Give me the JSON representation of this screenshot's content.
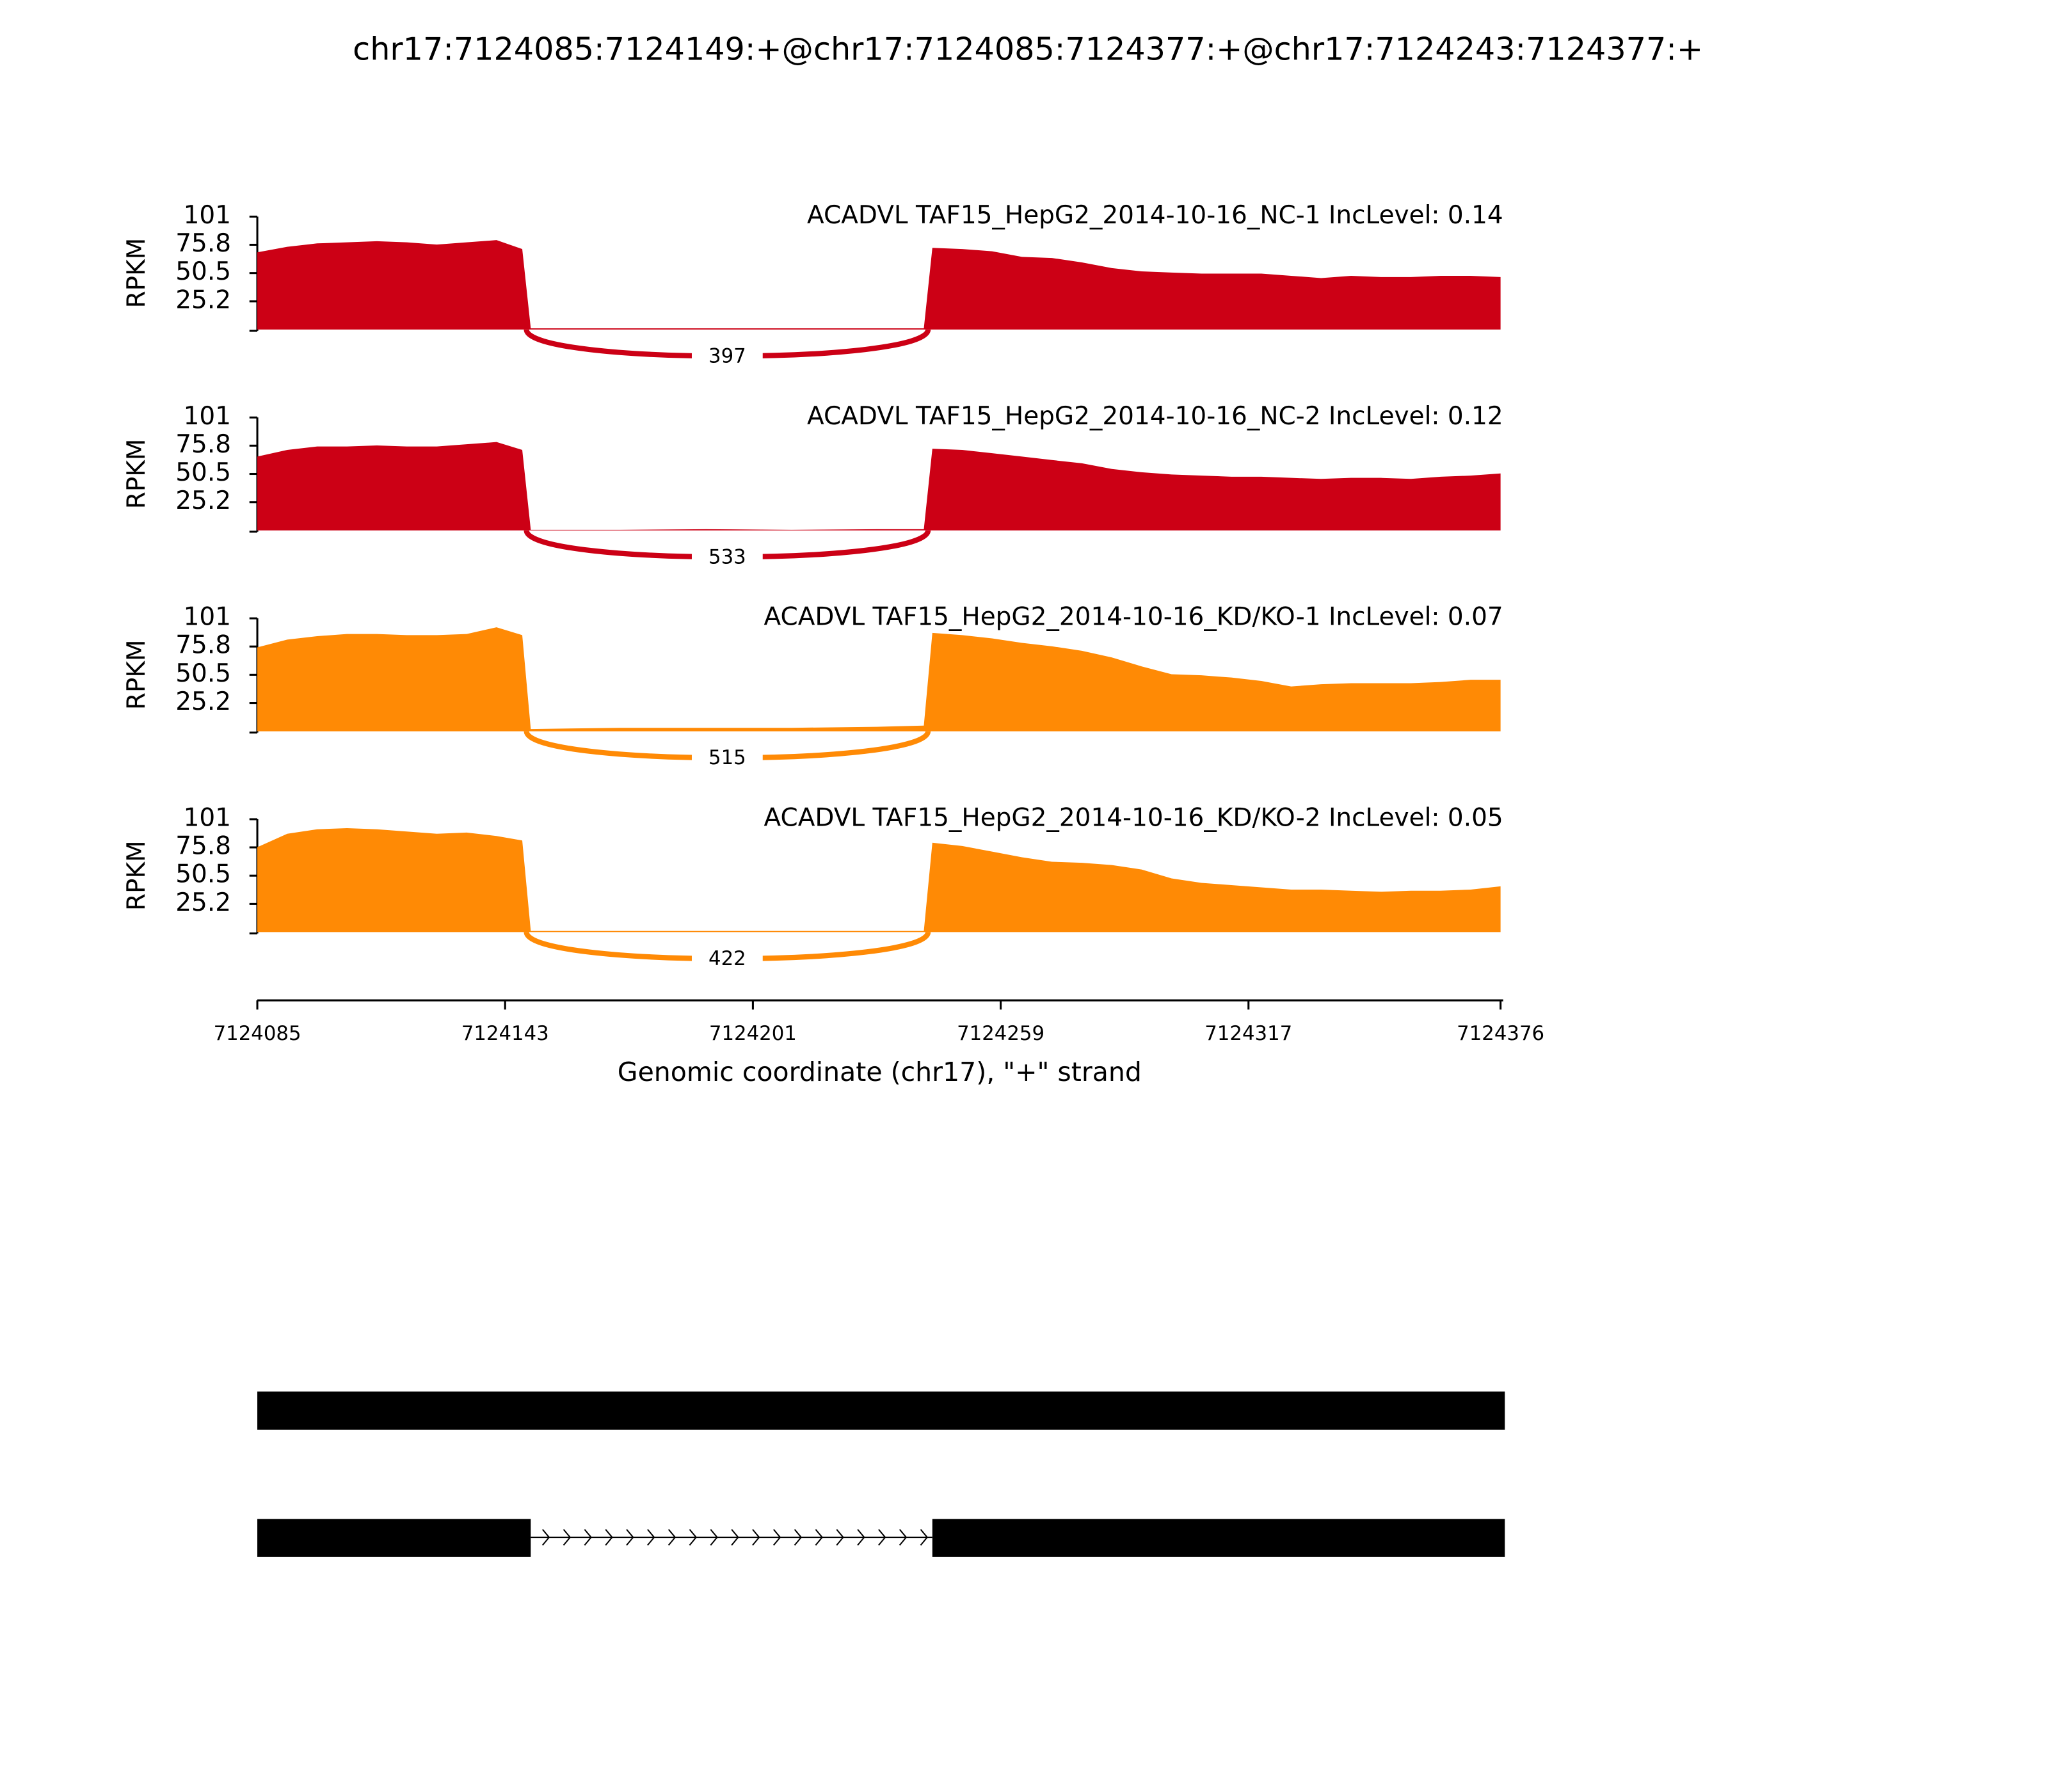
{
  "chart_data": {
    "type": "sashimi",
    "title": "chr17:7124085:7124149:+@chr17:7124085:7124377:+@chr17:7124243:7124377:+",
    "ylabel": "RPKM",
    "xlabel": "Genomic coordinate (chr17), \"+\" strand",
    "xlim": [
      7124085,
      7124376
    ],
    "xticks": [
      7124085,
      7124143,
      7124201,
      7124259,
      7124317,
      7124376
    ],
    "ylim": [
      0,
      101
    ],
    "yticks": [
      25.2,
      50.5,
      75.8,
      101
    ],
    "x": [
      7124085,
      7124092,
      7124099,
      7124106,
      7124113,
      7124120,
      7124127,
      7124134,
      7124141,
      7124147,
      7124149,
      7124170,
      7124190,
      7124210,
      7124230,
      7124241,
      7124243,
      7124250,
      7124257,
      7124264,
      7124271,
      7124278,
      7124285,
      7124292,
      7124299,
      7124306,
      7124313,
      7124320,
      7124327,
      7124334,
      7124341,
      7124348,
      7124355,
      7124362,
      7124369,
      7124376
    ],
    "series": [
      {
        "name": "ACADVL TAF15_HepG2_2014-10-16_NC-1 IncLevel: 0.14",
        "color": "#cc0015",
        "values": [
          69,
          74,
          77,
          78,
          79,
          78,
          76,
          78,
          80,
          72,
          1,
          1,
          1,
          1,
          1,
          1,
          73,
          72,
          70,
          65,
          64,
          60,
          55,
          52,
          51,
          50,
          50,
          50,
          48,
          46,
          48,
          47,
          47,
          48,
          48,
          47
        ],
        "junction": {
          "start": 7124148,
          "end": 7124242,
          "count": 397
        }
      },
      {
        "name": "ACADVL TAF15_HepG2_2014-10-16_NC-2 IncLevel: 0.12",
        "color": "#cc0015",
        "values": [
          66,
          72,
          75,
          75,
          76,
          75,
          75,
          77,
          79,
          72,
          0.5,
          0.5,
          1,
          0.5,
          1,
          1,
          73,
          72,
          69,
          66,
          63,
          60,
          55,
          52,
          50,
          49,
          48,
          48,
          47,
          46,
          47,
          47,
          46,
          48,
          49,
          51
        ],
        "junction": {
          "start": 7124148,
          "end": 7124242,
          "count": 533
        }
      },
      {
        "name": "ACADVL TAF15_HepG2_2014-10-16_KD/KO-1 IncLevel: 0.07",
        "color": "#ff8a05",
        "values": [
          75,
          82,
          85,
          87,
          87,
          86,
          86,
          87,
          93,
          86,
          2,
          3,
          3,
          3,
          4,
          5,
          88,
          86,
          83,
          79,
          76,
          72,
          66,
          58,
          51,
          50,
          48,
          45,
          40,
          42,
          43,
          43,
          43,
          44,
          46,
          46
        ],
        "junction": {
          "start": 7124148,
          "end": 7124242,
          "count": 515
        }
      },
      {
        "name": "ACADVL TAF15_HepG2_2014-10-16_KD/KO-2 IncLevel: 0.05",
        "color": "#ff8a05",
        "values": [
          76,
          88,
          92,
          93,
          92,
          90,
          88,
          89,
          86,
          82,
          1,
          1,
          1,
          1,
          1,
          1,
          80,
          77,
          72,
          67,
          63,
          62,
          60,
          56,
          48,
          44,
          42,
          40,
          38,
          38,
          37,
          36,
          37,
          37,
          38,
          41
        ],
        "junction": {
          "start": 7124148,
          "end": 7124242,
          "count": 422
        }
      }
    ],
    "transcripts": [
      {
        "exons": [
          {
            "start": 7124085,
            "end": 7124377
          }
        ]
      },
      {
        "exons": [
          {
            "start": 7124085,
            "end": 7124149
          },
          {
            "start": 7124243,
            "end": 7124377
          }
        ]
      }
    ]
  }
}
